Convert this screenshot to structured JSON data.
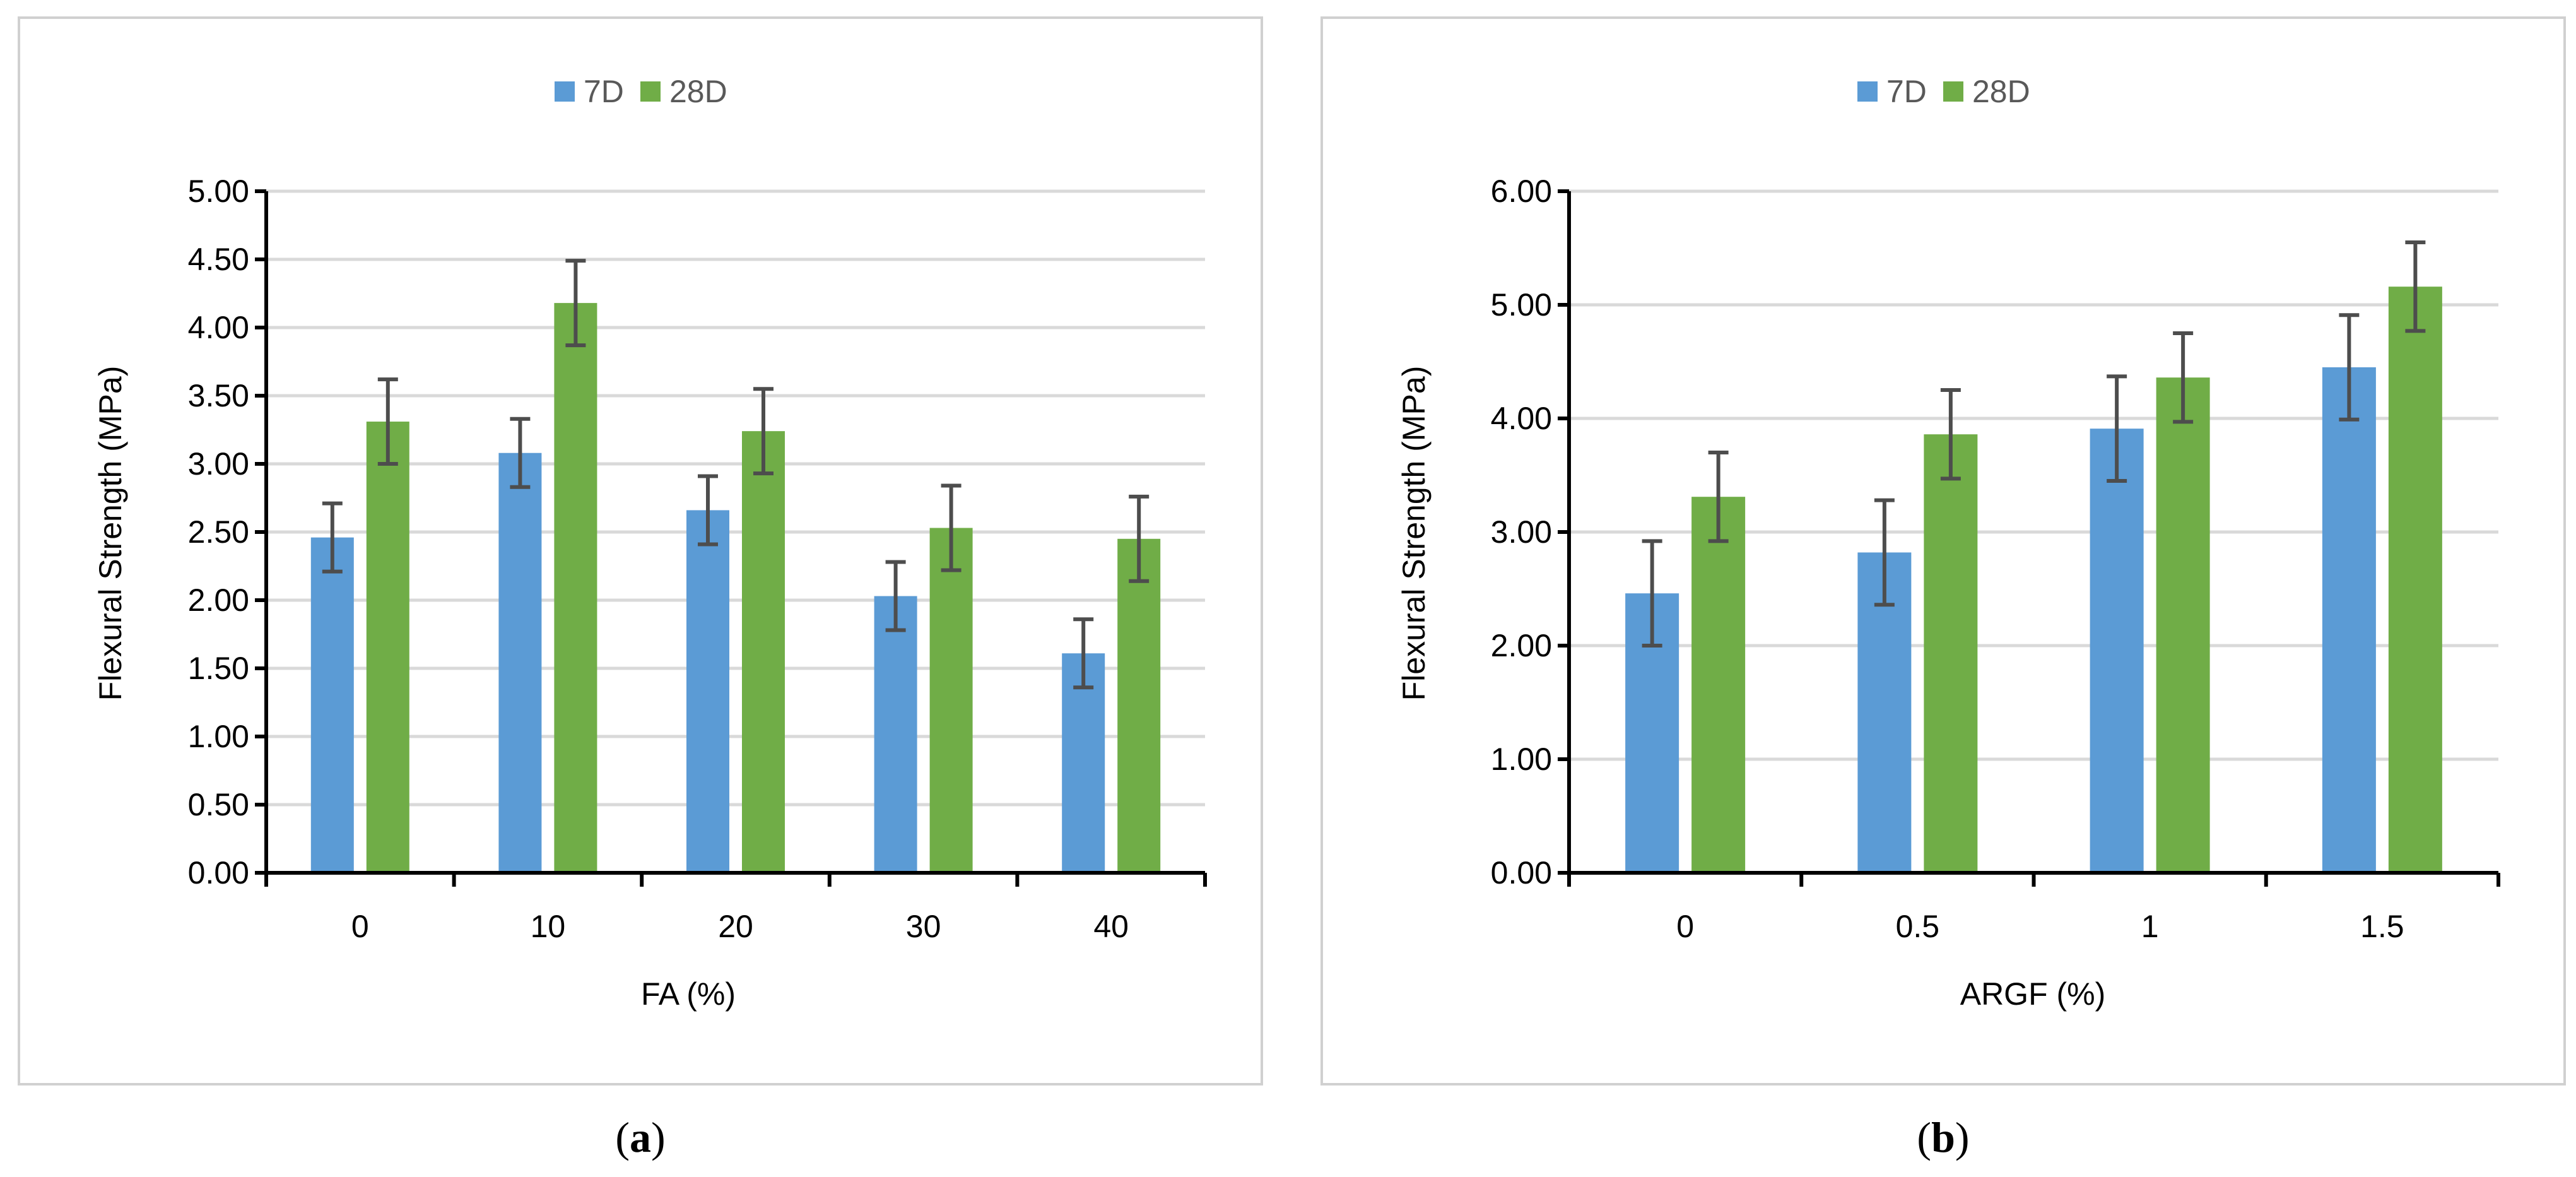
{
  "chart_data": [
    {
      "type": "bar",
      "panel_label": "a",
      "xlabel": "FA (%)",
      "ylabel": "Flexural Strength (MPa)",
      "categories": [
        "0",
        "10",
        "20",
        "30",
        "40"
      ],
      "ylim": [
        0,
        5
      ],
      "yticks": [
        "0.00",
        "0.50",
        "1.00",
        "1.50",
        "2.00",
        "2.50",
        "3.00",
        "3.50",
        "4.00",
        "4.50",
        "5.00"
      ],
      "grid": true,
      "legend_position": "top-center",
      "series": [
        {
          "name": "7D",
          "color": "#5b9bd5",
          "values": [
            2.46,
            3.08,
            2.66,
            2.03,
            1.61
          ],
          "errors": [
            0.25,
            0.25,
            0.25,
            0.25,
            0.25
          ]
        },
        {
          "name": "28D",
          "color": "#70ad47",
          "values": [
            3.31,
            4.18,
            3.24,
            2.53,
            2.45
          ],
          "errors": [
            0.31,
            0.31,
            0.31,
            0.31,
            0.31
          ]
        }
      ]
    },
    {
      "type": "bar",
      "panel_label": "b",
      "xlabel": "ARGF (%)",
      "ylabel": "Flexural Strength (MPa)",
      "categories": [
        "0",
        "0.5",
        "1",
        "1.5"
      ],
      "ylim": [
        0,
        6
      ],
      "yticks": [
        "0.00",
        "1.00",
        "2.00",
        "3.00",
        "4.00",
        "5.00",
        "6.00"
      ],
      "grid": true,
      "legend_position": "top-center",
      "series": [
        {
          "name": "7D",
          "color": "#5b9bd5",
          "values": [
            2.46,
            2.82,
            3.91,
            4.45
          ],
          "errors": [
            0.46,
            0.46,
            0.46,
            0.46
          ]
        },
        {
          "name": "28D",
          "color": "#70ad47",
          "values": [
            3.31,
            3.86,
            4.36,
            5.16
          ],
          "errors": [
            0.39,
            0.39,
            0.39,
            0.39
          ]
        }
      ]
    }
  ]
}
